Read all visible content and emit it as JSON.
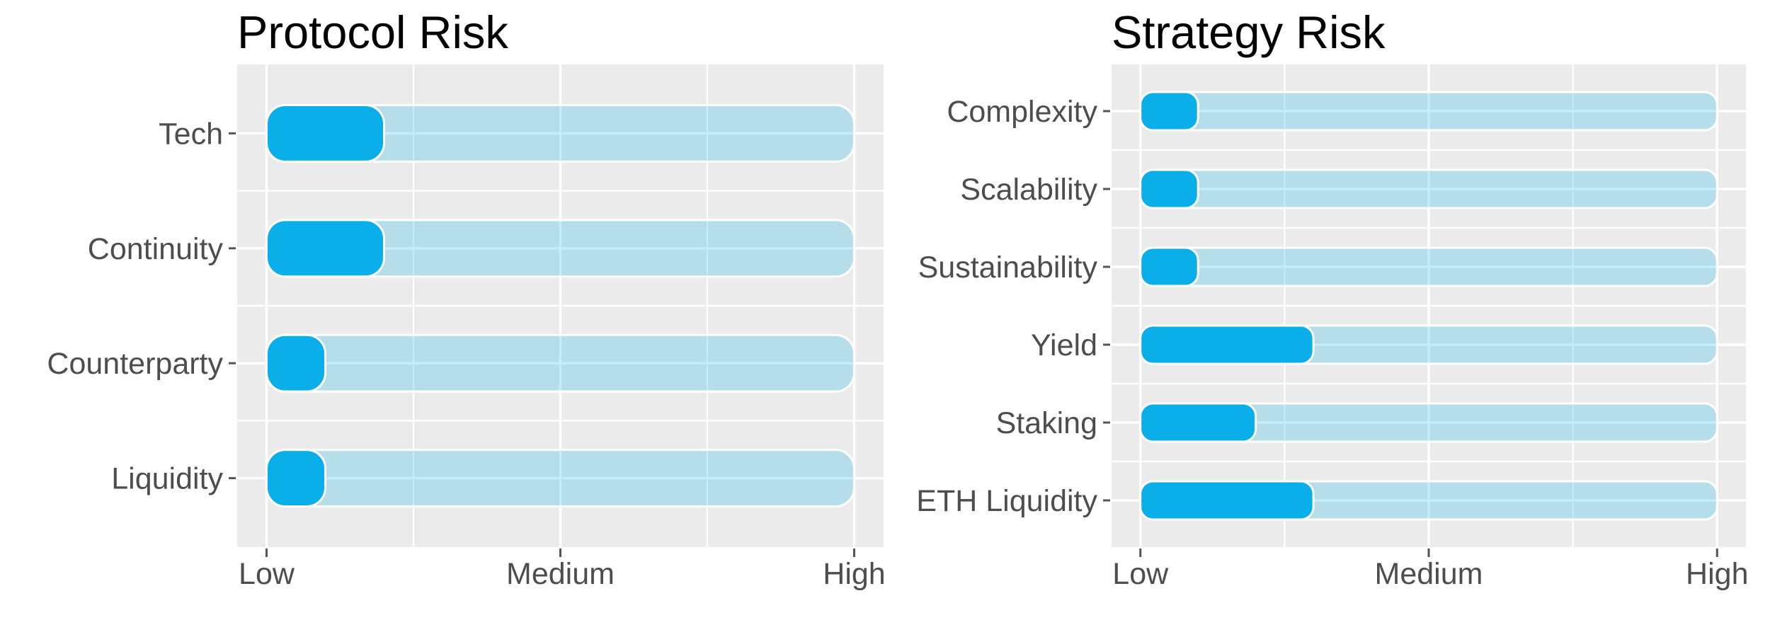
{
  "figure": {
    "kind": "risk-comparison-figure",
    "background": "#ffffff"
  },
  "chart_data": [
    {
      "type": "bar",
      "orientation": "horizontal",
      "title": "Protocol Risk",
      "categories": [
        "Tech",
        "Continuity",
        "Counterparty",
        "Liquidity"
      ],
      "values": [
        2,
        2,
        1,
        1
      ],
      "track_max": 10,
      "x_ticks": [
        {
          "label": "Low",
          "value": 0
        },
        {
          "label": "Medium",
          "value": 5
        },
        {
          "label": "High",
          "value": 10
        }
      ],
      "x_minor_ticks": [
        2.5,
        7.5
      ],
      "xlim": [
        -0.5,
        10.5
      ],
      "xlabel": "",
      "ylabel": "",
      "grid": true,
      "legend": false
    },
    {
      "type": "bar",
      "orientation": "horizontal",
      "title": "Strategy Risk",
      "categories": [
        "Complexity",
        "Scalability",
        "Sustainability",
        "Yield",
        "Staking",
        "ETH Liquidity"
      ],
      "values": [
        1,
        1,
        1,
        3,
        2,
        3
      ],
      "track_max": 10,
      "x_ticks": [
        {
          "label": "Low",
          "value": 0
        },
        {
          "label": "Medium",
          "value": 5
        },
        {
          "label": "High",
          "value": 10
        }
      ],
      "x_minor_ticks": [
        2.5,
        7.5
      ],
      "xlim": [
        -0.5,
        10.5
      ],
      "xlabel": "",
      "ylabel": "",
      "grid": true,
      "legend": false
    }
  ],
  "colors": {
    "bar_fill": "#0aaee8",
    "bar_track_alpha": 0.24,
    "bar_stroke": "#ffffff",
    "panel_bg": "#ebebeb",
    "gridline": "#ffffff",
    "axis_text": "#4d4d4d",
    "tick_mark": "#555555",
    "title_text": "#000000"
  }
}
